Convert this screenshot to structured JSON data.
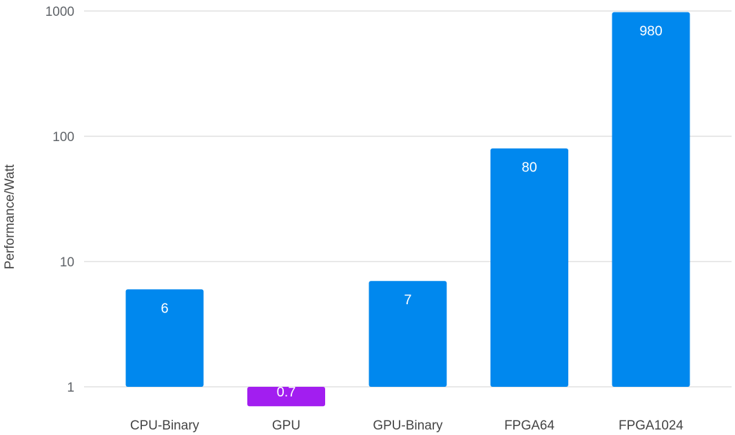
{
  "chart_data": {
    "type": "bar",
    "ylabel": "Performance/Watt",
    "xlabel": "",
    "title": "",
    "yscale": "log",
    "ylim": [
      1,
      1000
    ],
    "yticks": [
      1,
      10,
      100,
      1000
    ],
    "ytick_labels": [
      "1",
      "10",
      "100",
      "1000"
    ],
    "grid": true,
    "categories": [
      "CPU-Binary",
      "GPU",
      "GPU-Binary",
      "FPGA64",
      "FPGA1024"
    ],
    "values": [
      6,
      0.7,
      7,
      80,
      980
    ],
    "data_labels": [
      "6",
      "0.7",
      "7",
      "80",
      "980"
    ],
    "colors": [
      "#0088ee",
      "#a21ef0",
      "#0088ee",
      "#0088ee",
      "#0088ee"
    ]
  }
}
